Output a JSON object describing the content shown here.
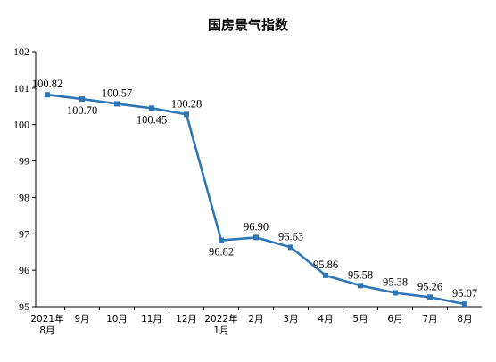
{
  "chart_data": {
    "type": "line",
    "title": "国房景气指数",
    "categories": [
      [
        "2021年",
        "8月"
      ],
      [
        "9月"
      ],
      [
        "10月"
      ],
      [
        "11月"
      ],
      [
        "12月"
      ],
      [
        "2022年",
        "1月"
      ],
      [
        "2月"
      ],
      [
        "3月"
      ],
      [
        "4月"
      ],
      [
        "5月"
      ],
      [
        "6月"
      ],
      [
        "7月"
      ],
      [
        "8月"
      ]
    ],
    "values": [
      100.82,
      100.7,
      100.57,
      100.45,
      100.28,
      96.82,
      96.9,
      96.63,
      95.86,
      95.58,
      95.38,
      95.26,
      95.07
    ],
    "data_labels": [
      "100.82",
      "100.70",
      "100.57",
      "100.45",
      "100.28",
      "96.82",
      "96.90",
      "96.63",
      "95.86",
      "95.58",
      "95.38",
      "95.26",
      "95.07"
    ],
    "ylim": [
      95,
      102
    ],
    "yticks": [
      95,
      96,
      97,
      98,
      99,
      100,
      101,
      102
    ],
    "grid": false,
    "line_color": "#2E75B6"
  }
}
